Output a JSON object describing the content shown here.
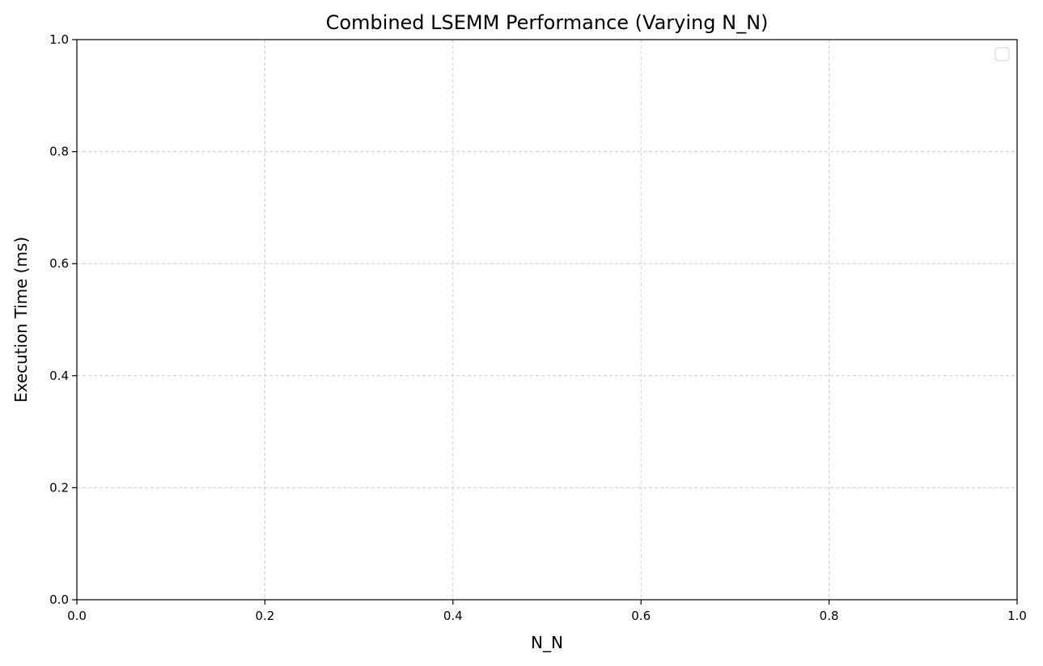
{
  "chart_data": {
    "type": "line",
    "title": "Combined LSEMM Performance (Varying N_N)",
    "xlabel": "N_N",
    "ylabel": "Execution Time (ms)",
    "xlim": [
      0.0,
      1.0
    ],
    "ylim": [
      0.0,
      1.0
    ],
    "xticks": [
      "0.0",
      "0.2",
      "0.4",
      "0.6",
      "0.8",
      "1.0"
    ],
    "yticks": [
      "0.0",
      "0.2",
      "0.4",
      "0.6",
      "0.8",
      "1.0"
    ],
    "series": [],
    "grid": true,
    "grid_style": "dashed",
    "legend": {
      "position": "top-right",
      "entries": []
    },
    "colors": {
      "grid": "#cccccc",
      "axes": "#000000",
      "legend_border": "#d0d0d0"
    }
  }
}
